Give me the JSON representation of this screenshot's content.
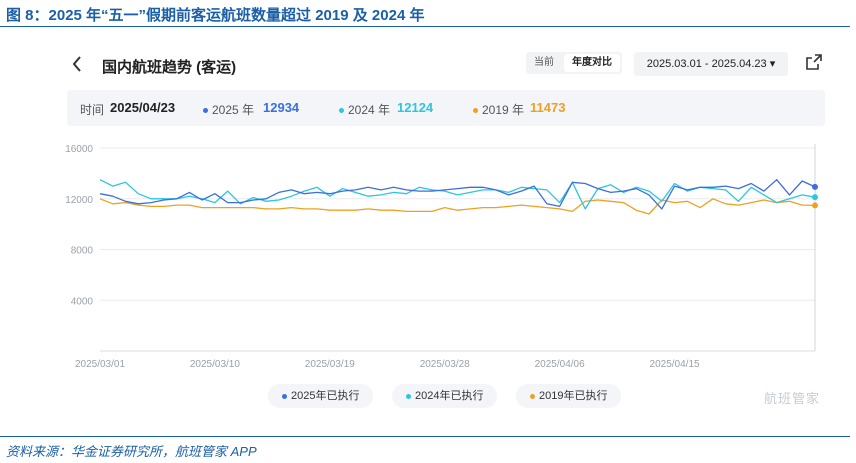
{
  "figure_title": "图 8：2025 年“五一”假期前客运航班数量超过 2019 及 2024 年",
  "source": "资料来源：华金证券研究所，航班管家 APP",
  "header": {
    "back_icon": "chevron-left-icon",
    "title": "国内航班趋势 (客运)",
    "segments": [
      "当前",
      "年度对比"
    ],
    "active_segment": "年度对比",
    "date_range": "2025.03.01 - 2025.04.23 ▾",
    "share_icon": "share-icon"
  },
  "info": {
    "time_label": "时间",
    "time_value": "2025/04/23",
    "items": [
      {
        "label": "2025 年",
        "value": "12934",
        "color": "#3b6fe0"
      },
      {
        "label": "2024 年",
        "value": "12124",
        "color": "#2cc6e0"
      },
      {
        "label": "2019 年",
        "value": "11473",
        "color": "#f0a020"
      }
    ]
  },
  "legend": [
    "2025年已执行",
    "2024年已执行",
    "2019年已执行"
  ],
  "watermark": "航班管家",
  "chart_data": {
    "type": "line",
    "x_tick_labels": [
      "2025/03/01",
      "2025/03/10",
      "2025/03/19",
      "2025/03/28",
      "2025/04/06",
      "2025/04/15"
    ],
    "y_ticks": [
      4000,
      8000,
      12000,
      16000
    ],
    "ylim": [
      0,
      16000
    ],
    "grid": true,
    "legend_position": "bottom",
    "series": [
      {
        "name": "2025年已执行",
        "color": "#3b6fe0",
        "values": [
          12400,
          12200,
          11800,
          11600,
          11700,
          11900,
          12000,
          12500,
          11900,
          12400,
          11700,
          11700,
          11900,
          12000,
          12500,
          12700,
          12400,
          12500,
          12400,
          12600,
          12700,
          12900,
          12700,
          12900,
          12700,
          12600,
          12600,
          12700,
          12800,
          12900,
          12900,
          12700,
          12300,
          12600,
          13000,
          11600,
          11400,
          13300,
          13200,
          12800,
          12500,
          12600,
          12800,
          12300,
          11200,
          13000,
          12700,
          12900,
          12900,
          13000,
          12800,
          13200,
          12600,
          13500,
          12300,
          13400,
          12934
        ]
      },
      {
        "name": "2024年已执行",
        "color": "#2cc6e0",
        "values": [
          13500,
          13000,
          13300,
          12400,
          12000,
          12000,
          12000,
          12200,
          12000,
          11700,
          12600,
          11600,
          12100,
          11800,
          11900,
          12200,
          12600,
          12900,
          12200,
          12800,
          12500,
          12200,
          12300,
          12500,
          12400,
          12900,
          12700,
          12600,
          12300,
          12500,
          12700,
          12700,
          12500,
          12900,
          12800,
          12700,
          11700,
          13300,
          11200,
          12800,
          13100,
          12500,
          12900,
          12600,
          11800,
          13200,
          12600,
          12900,
          12800,
          12700,
          11800,
          12900,
          12300,
          11700,
          12000,
          12300,
          12124
        ]
      },
      {
        "name": "2019年已执行",
        "color": "#f0a020",
        "values": [
          12000,
          11600,
          11700,
          11500,
          11400,
          11400,
          11500,
          11500,
          11300,
          11300,
          11300,
          11300,
          11300,
          11200,
          11200,
          11300,
          11200,
          11200,
          11100,
          11100,
          11100,
          11200,
          11100,
          11100,
          11000,
          11000,
          11000,
          11300,
          11100,
          11200,
          11300,
          11300,
          11400,
          11500,
          11400,
          11300,
          11200,
          11000,
          11800,
          11900,
          11800,
          11700,
          11100,
          10800,
          11900,
          11700,
          11800,
          11300,
          12000,
          11600,
          11500,
          11700,
          11900,
          11700,
          11800,
          11500,
          11473
        ]
      }
    ]
  }
}
